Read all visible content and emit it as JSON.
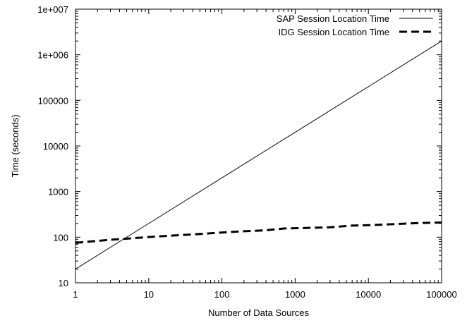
{
  "chart_data": {
    "type": "line",
    "title": "",
    "xlabel": "Number of Data Sources",
    "ylabel": "Time (seconds)",
    "x_scale": "log",
    "y_scale": "log",
    "xlim": [
      1,
      100000
    ],
    "ylim": [
      10,
      10000000
    ],
    "grid": false,
    "legend_position": "top-right",
    "x_ticks": [
      {
        "value": 1,
        "label": "1"
      },
      {
        "value": 10,
        "label": "10"
      },
      {
        "value": 100,
        "label": "100"
      },
      {
        "value": 1000,
        "label": "1000"
      },
      {
        "value": 10000,
        "label": "10000"
      },
      {
        "value": 100000,
        "label": "100000"
      }
    ],
    "y_ticks": [
      {
        "value": 10,
        "label": "10"
      },
      {
        "value": 100,
        "label": "100"
      },
      {
        "value": 1000,
        "label": "1000"
      },
      {
        "value": 10000,
        "label": "10000"
      },
      {
        "value": 100000,
        "label": "100000"
      },
      {
        "value": 1000000,
        "label": "1e+006"
      },
      {
        "value": 10000000,
        "label": "1e+007"
      }
    ],
    "series": [
      {
        "name": "SAP Session Location Time",
        "style": "solid",
        "color": "#000000",
        "x": [
          1,
          10,
          100,
          1000,
          10000,
          100000
        ],
        "y": [
          20,
          200,
          2000,
          20000,
          200000,
          2000000
        ]
      },
      {
        "name": "IDG Session Location Time",
        "style": "dashed",
        "color": "#000000",
        "x": [
          1,
          1.5,
          2,
          3,
          5,
          8,
          12,
          20,
          40,
          70,
          130,
          200,
          400,
          700,
          1500,
          3000,
          6000,
          12000,
          25000,
          50000,
          100000
        ],
        "y": [
          75,
          80,
          83,
          88,
          93,
          98,
          103,
          108,
          115,
          122,
          130,
          135,
          142,
          155,
          160,
          165,
          180,
          185,
          195,
          205,
          210
        ]
      }
    ]
  }
}
